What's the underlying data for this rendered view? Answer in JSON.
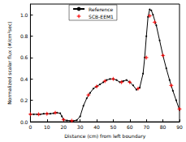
{
  "chart_data": {
    "type": "line",
    "x_label": "Distance (cm) from left boundary",
    "y_label": "Normalized scalar flux (#/cm²sec)",
    "xlim": [
      0,
      90
    ],
    "xticks": [
      0,
      10,
      20,
      30,
      40,
      50,
      60,
      70,
      80,
      90
    ],
    "ylim": [
      0,
      1.1
    ],
    "yticks": [
      {
        "value": 0,
        "label": "0.0"
      },
      0.2,
      0.4,
      0.6,
      0.8,
      {
        "value": 1,
        "label": "1.0"
      }
    ],
    "grid": false,
    "legend": "top",
    "series": [
      {
        "name": "Reference",
        "type": "line",
        "color": "#000000",
        "marker": "circle",
        "line_style": "solid",
        "x": [
          0,
          2,
          4,
          6,
          8,
          10,
          12,
          14,
          16,
          18,
          19,
          20,
          22,
          24,
          26,
          28,
          30,
          32,
          34,
          36,
          38,
          40,
          42,
          44,
          46,
          48,
          50,
          52,
          54,
          56,
          58,
          60,
          62,
          64,
          66,
          68,
          69,
          70,
          71,
          72,
          73,
          74,
          76,
          78,
          80,
          82,
          84,
          86,
          88,
          90
        ],
        "values": [
          0.07,
          0.07,
          0.07,
          0.07,
          0.075,
          0.075,
          0.075,
          0.08,
          0.085,
          0.08,
          0.05,
          0.02,
          0.012,
          0.01,
          0.01,
          0.015,
          0.05,
          0.15,
          0.22,
          0.27,
          0.31,
          0.33,
          0.35,
          0.37,
          0.39,
          0.4,
          0.4,
          0.39,
          0.37,
          0.38,
          0.39,
          0.37,
          0.34,
          0.3,
          0.32,
          0.45,
          0.6,
          0.8,
          0.98,
          1.05,
          1.04,
          1.0,
          0.9,
          0.76,
          0.62,
          0.5,
          0.39,
          0.29,
          0.2,
          0.11
        ]
      },
      {
        "name": "SCB-EEM1",
        "type": "scatter",
        "color": "#ff0000",
        "marker": "star",
        "x": [
          0,
          5,
          10,
          15,
          20,
          25,
          35,
          40,
          45,
          50,
          55,
          60,
          65,
          70,
          72,
          75,
          80,
          85,
          90
        ],
        "values": [
          0.07,
          0.07,
          0.075,
          0.085,
          0.02,
          0.01,
          0.25,
          0.33,
          0.38,
          0.4,
          0.37,
          0.37,
          0.31,
          0.6,
          0.99,
          0.93,
          0.62,
          0.34,
          0.12
        ]
      }
    ]
  }
}
